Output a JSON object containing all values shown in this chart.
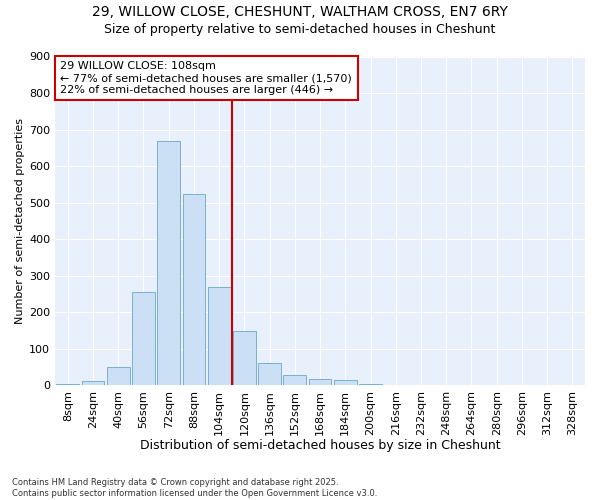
{
  "title1": "29, WILLOW CLOSE, CHESHUNT, WALTHAM CROSS, EN7 6RY",
  "title2": "Size of property relative to semi-detached houses in Cheshunt",
  "xlabel": "Distribution of semi-detached houses by size in Cheshunt",
  "ylabel": "Number of semi-detached properties",
  "footnote": "Contains HM Land Registry data © Crown copyright and database right 2025.\nContains public sector information licensed under the Open Government Licence v3.0.",
  "bin_labels": [
    "8sqm",
    "24sqm",
    "40sqm",
    "56sqm",
    "72sqm",
    "88sqm",
    "104sqm",
    "120sqm",
    "136sqm",
    "152sqm",
    "168sqm",
    "184sqm",
    "200sqm",
    "216sqm",
    "232sqm",
    "248sqm",
    "264sqm",
    "280sqm",
    "296sqm",
    "312sqm",
    "328sqm"
  ],
  "bar_values": [
    5,
    12,
    50,
    255,
    670,
    525,
    270,
    150,
    62,
    28,
    18,
    15,
    3,
    0,
    0,
    0,
    0,
    0,
    0,
    0,
    0
  ],
  "bar_color": "#cce0f5",
  "bar_edge_color": "#7aafd4",
  "red_line_x": 6.5,
  "annotation_text": "29 WILLOW CLOSE: 108sqm\n← 77% of semi-detached houses are smaller (1,570)\n22% of semi-detached houses are larger (446) →",
  "annotation_box_color": "#ffffff",
  "annotation_box_edge_color": "#cc0000",
  "annotation_text_color": "#000000",
  "vline_color": "#cc0000",
  "bg_color": "#ffffff",
  "plot_bg_color": "#e8f0fb",
  "grid_color": "#ffffff",
  "ylim": [
    0,
    900
  ],
  "yticks": [
    0,
    100,
    200,
    300,
    400,
    500,
    600,
    700,
    800,
    900
  ],
  "title1_fontsize": 10,
  "title2_fontsize": 9,
  "xlabel_fontsize": 9,
  "ylabel_fontsize": 8,
  "tick_fontsize": 8,
  "annotation_fontsize": 8,
  "footnote_fontsize": 6
}
